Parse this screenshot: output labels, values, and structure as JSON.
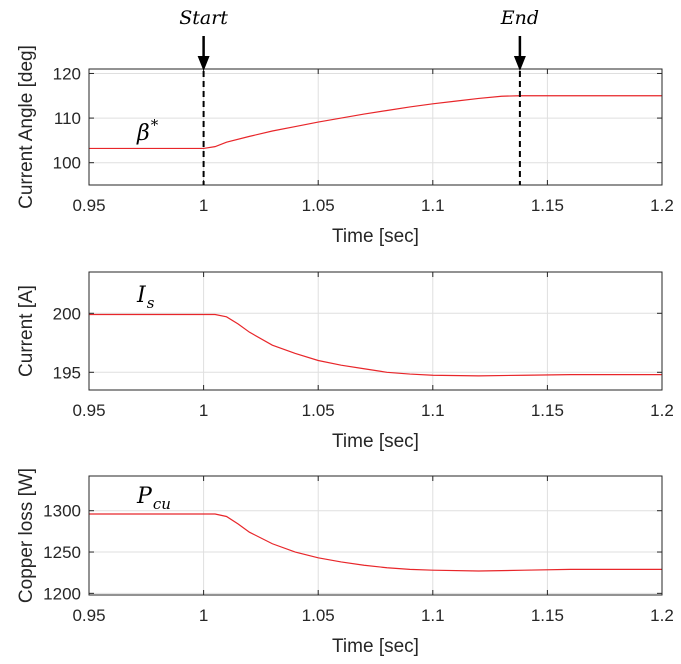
{
  "chart_data": [
    {
      "type": "line",
      "id": "angle",
      "ylabel": "Current Angle [deg]",
      "xlabel": "Time [sec]",
      "xlim": [
        0.95,
        1.2
      ],
      "ylim": [
        95,
        121
      ],
      "xticks": [
        0.95,
        1,
        1.05,
        1.1,
        1.15,
        1.2
      ],
      "xtick_labels": [
        "0.95",
        "1",
        "1.05",
        "1.1",
        "1.15",
        "1.2"
      ],
      "yticks": [
        100,
        110,
        120
      ],
      "ytick_labels": [
        "100",
        "110",
        "120"
      ],
      "grid": true,
      "series": [
        {
          "label": "β*",
          "label_base": "β",
          "label_sup": "*",
          "color": "#e8262a",
          "x": [
            0.95,
            1.0,
            1.005,
            1.01,
            1.02,
            1.03,
            1.04,
            1.05,
            1.06,
            1.07,
            1.08,
            1.09,
            1.1,
            1.11,
            1.12,
            1.13,
            1.138,
            1.15,
            1.2
          ],
          "y": [
            103.2,
            103.2,
            103.6,
            104.6,
            105.9,
            107.1,
            108.1,
            109.1,
            110.0,
            110.9,
            111.7,
            112.5,
            113.2,
            113.8,
            114.4,
            114.9,
            115.0,
            115.0,
            115.0
          ]
        }
      ],
      "annotations": [
        {
          "text": "Start",
          "x": 1.0,
          "type": "dashed-vline-with-arrow"
        },
        {
          "text": "End",
          "x": 1.138,
          "type": "dashed-vline-with-arrow"
        }
      ]
    },
    {
      "type": "line",
      "id": "current",
      "ylabel": "Current [A]",
      "xlabel": "Time [sec]",
      "xlim": [
        0.95,
        1.2
      ],
      "ylim": [
        193.5,
        203.5
      ],
      "xticks": [
        0.95,
        1,
        1.05,
        1.1,
        1.15,
        1.2
      ],
      "xtick_labels": [
        "0.95",
        "1",
        "1.05",
        "1.1",
        "1.15",
        "1.2"
      ],
      "yticks": [
        195,
        200
      ],
      "ytick_labels": [
        "195",
        "200"
      ],
      "grid": true,
      "series": [
        {
          "label": "Is",
          "label_base": "I",
          "label_sub": "s",
          "color": "#e8262a",
          "x": [
            0.95,
            1.0,
            1.005,
            1.01,
            1.015,
            1.02,
            1.03,
            1.04,
            1.05,
            1.06,
            1.07,
            1.08,
            1.09,
            1.1,
            1.12,
            1.14,
            1.16,
            1.2
          ],
          "y": [
            199.9,
            199.9,
            199.9,
            199.7,
            199.1,
            198.4,
            197.3,
            196.6,
            196.0,
            195.6,
            195.3,
            195.0,
            194.85,
            194.75,
            194.7,
            194.75,
            194.8,
            194.8
          ]
        }
      ]
    },
    {
      "type": "line",
      "id": "copper",
      "ylabel": "Copper loss [W]",
      "xlabel": "Time [sec]",
      "xlim": [
        0.95,
        1.2
      ],
      "ylim": [
        1198,
        1342
      ],
      "xticks": [
        0.95,
        1,
        1.05,
        1.1,
        1.15,
        1.2
      ],
      "xtick_labels": [
        "0.95",
        "1",
        "1.05",
        "1.1",
        "1.15",
        "1.2"
      ],
      "yticks": [
        1200,
        1250,
        1300
      ],
      "ytick_labels": [
        "1200",
        "1250",
        "1300"
      ],
      "grid": true,
      "series": [
        {
          "label": "Pcu",
          "label_base": "P",
          "label_sub": "cu",
          "color": "#e8262a",
          "x": [
            0.95,
            1.0,
            1.005,
            1.01,
            1.015,
            1.02,
            1.03,
            1.04,
            1.05,
            1.06,
            1.07,
            1.08,
            1.09,
            1.1,
            1.12,
            1.14,
            1.16,
            1.2
          ],
          "y": [
            1296,
            1296,
            1296,
            1293,
            1284,
            1274,
            1260,
            1250,
            1243,
            1238,
            1234,
            1231,
            1229,
            1228,
            1227,
            1228,
            1229,
            1229
          ]
        }
      ]
    }
  ]
}
